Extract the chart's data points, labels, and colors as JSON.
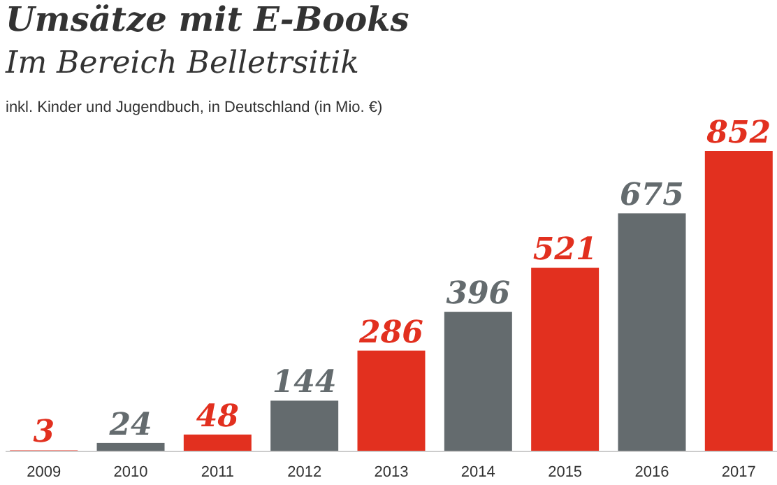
{
  "chart_data": {
    "type": "bar",
    "title": "Umsätze mit E-Books",
    "subtitle": "Im Bereich Belletrsitik",
    "annotations": [
      "inkl. Kinder und Jugendbuch, in Deutschland (in Mio. €)"
    ],
    "categories": [
      "2009",
      "2010",
      "2011",
      "2012",
      "2013",
      "2014",
      "2015",
      "2016",
      "2017"
    ],
    "values": [
      3,
      24,
      48,
      144,
      286,
      396,
      521,
      675,
      852
    ],
    "colors": [
      "#e2301f",
      "#646b6e",
      "#e2301f",
      "#646b6e",
      "#e2301f",
      "#646b6e",
      "#e2301f",
      "#646b6e",
      "#e2301f"
    ],
    "data_labels": true
  }
}
